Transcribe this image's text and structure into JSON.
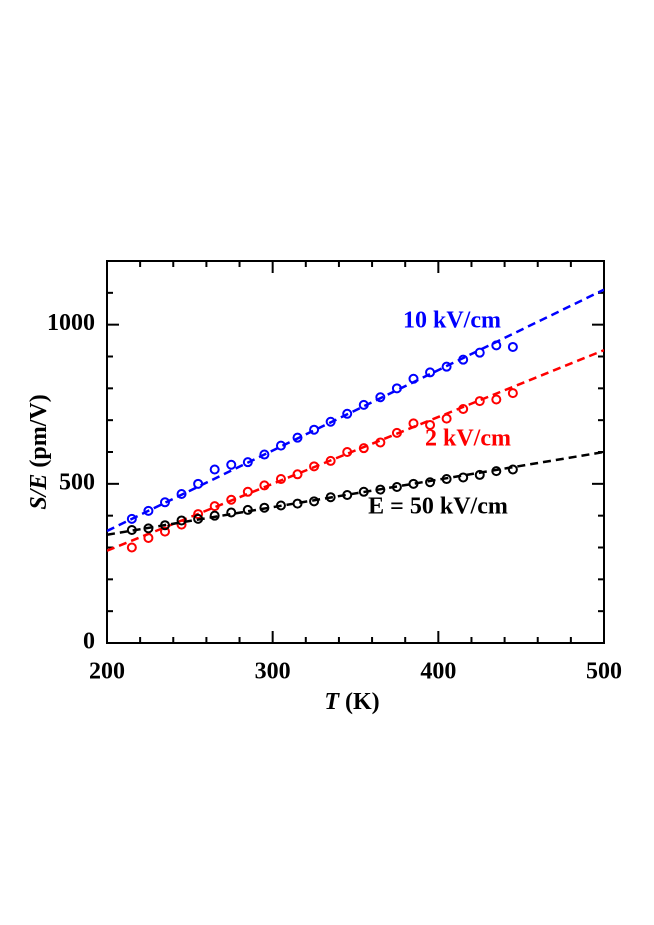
{
  "chart_data": {
    "type": "scatter",
    "xlabel": {
      "var": "T",
      "unit": "(K)"
    },
    "ylabel": {
      "var": "S/E",
      "unit": "(pm/V)"
    },
    "xlim": [
      200,
      500
    ],
    "ylim": [
      0,
      1200
    ],
    "xticks": [
      200,
      300,
      400,
      500
    ],
    "yticks": [
      0,
      500,
      1000
    ],
    "xminorticks": [
      220,
      240,
      260,
      280,
      320,
      340,
      360,
      380,
      420,
      440,
      460,
      480
    ],
    "yminorticks": [
      100,
      200,
      300,
      400,
      600,
      700,
      800,
      900,
      1100
    ],
    "x": [
      215,
      225,
      235,
      245,
      255,
      265,
      275,
      285,
      295,
      305,
      315,
      325,
      335,
      345,
      355,
      365,
      375,
      385,
      395,
      405,
      415,
      425,
      435,
      445
    ],
    "series": [
      {
        "name": "10 kV/cm",
        "color": "#0000ff",
        "values": [
          390,
          415,
          442,
          468,
          500,
          545,
          560,
          568,
          592,
          620,
          645,
          670,
          695,
          720,
          748,
          772,
          800,
          830,
          850,
          868,
          890,
          912,
          935,
          930
        ],
        "fit": {
          "x": [
            200,
            500
          ],
          "values": [
            352,
            1110
          ]
        }
      },
      {
        "name": "2 kV/cm",
        "color": "#ff0000",
        "values": [
          300,
          330,
          350,
          372,
          405,
          430,
          450,
          475,
          495,
          515,
          530,
          555,
          572,
          600,
          612,
          630,
          660,
          690,
          685,
          705,
          735,
          760,
          765,
          785
        ],
        "fit": {
          "x": [
            200,
            500
          ],
          "values": [
            290,
            920
          ]
        }
      },
      {
        "name": "E = 50 kV/cm",
        "color": "#000000",
        "values": [
          355,
          360,
          370,
          385,
          390,
          400,
          410,
          418,
          425,
          432,
          438,
          445,
          458,
          465,
          475,
          482,
          490,
          500,
          505,
          515,
          520,
          528,
          540,
          545
        ],
        "fit": {
          "x": [
            200,
            500
          ],
          "values": [
            340,
            600
          ]
        }
      }
    ]
  }
}
